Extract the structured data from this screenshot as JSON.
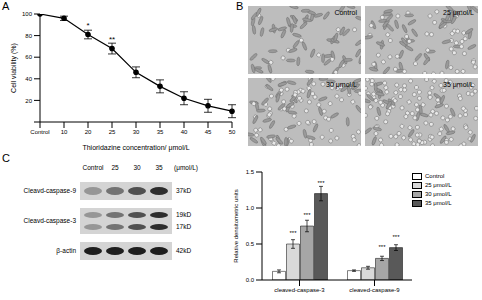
{
  "panel_labels": [
    "A",
    "B",
    "C"
  ],
  "chart_data": [
    {
      "type": "line",
      "x_label": "Thioridazine concentration/ μmol/L",
      "y_label": "Cell viability (%)",
      "categories": [
        "Control",
        "10",
        "20",
        "25",
        "30",
        "35",
        "40",
        "45",
        "50"
      ],
      "values": [
        100,
        96,
        81,
        68,
        46,
        33,
        22,
        15,
        10
      ],
      "errors": [
        0,
        2,
        4,
        5,
        5,
        6,
        6,
        6,
        6
      ],
      "annotations": [
        null,
        null,
        "*",
        "**",
        null,
        null,
        null,
        null,
        null
      ],
      "color": "#000000",
      "marker": "circle",
      "ylim": [
        0,
        100
      ],
      "yticks": [
        0,
        20,
        40,
        60,
        80,
        100
      ]
    },
    {
      "type": "bar",
      "y_label": "Relative densitometric units",
      "categories": [
        "cleaved-caspase-3",
        "cleaved-caspase-9"
      ],
      "ylim": [
        0,
        1.5
      ],
      "yticks": [
        {
          "value": 0,
          "label": "0.0"
        },
        {
          "value": 0.5,
          "label": "0.5"
        },
        {
          "value": 1,
          "label": "1.0"
        },
        {
          "value": 1.5,
          "label": "1.5"
        }
      ],
      "legend": "top-right",
      "series": [
        {
          "name": "Control",
          "color": "#ffffff",
          "values": [
            0.12,
            0.13
          ],
          "errors": [
            0.02,
            0.01
          ],
          "annotations": [
            null,
            null
          ]
        },
        {
          "name": "25 μmol/L",
          "color": "#d9d9d9",
          "values": [
            0.5,
            0.17
          ],
          "errors": [
            0.06,
            0.02
          ],
          "annotations": [
            "***",
            null
          ]
        },
        {
          "name": "30 μmol/L",
          "color": "#a6a6a6",
          "values": [
            0.75,
            0.3
          ],
          "errors": [
            0.08,
            0.03
          ],
          "annotations": [
            "***",
            "***"
          ]
        },
        {
          "name": "35 μmol/L",
          "color": "#595959",
          "values": [
            1.2,
            0.45
          ],
          "errors": [
            0.1,
            0.04
          ],
          "annotations": [
            "***",
            "***"
          ]
        }
      ]
    }
  ],
  "images": {
    "labels": [
      "Control",
      "25 μmol/L",
      "30 μmol/L",
      "35 μmol/L"
    ]
  },
  "blot": {
    "lanes": [
      "Control",
      "25",
      "30",
      "35"
    ],
    "unit": "(μmol/L)",
    "rows": [
      {
        "name": "Cleavd-caspase-9",
        "sizes": [
          "37kD"
        ]
      },
      {
        "name": "Cleavd-caspase-3",
        "sizes": [
          "19kD",
          "17kD"
        ]
      },
      {
        "name": "β-actin",
        "sizes": [
          "42kD"
        ]
      }
    ]
  }
}
